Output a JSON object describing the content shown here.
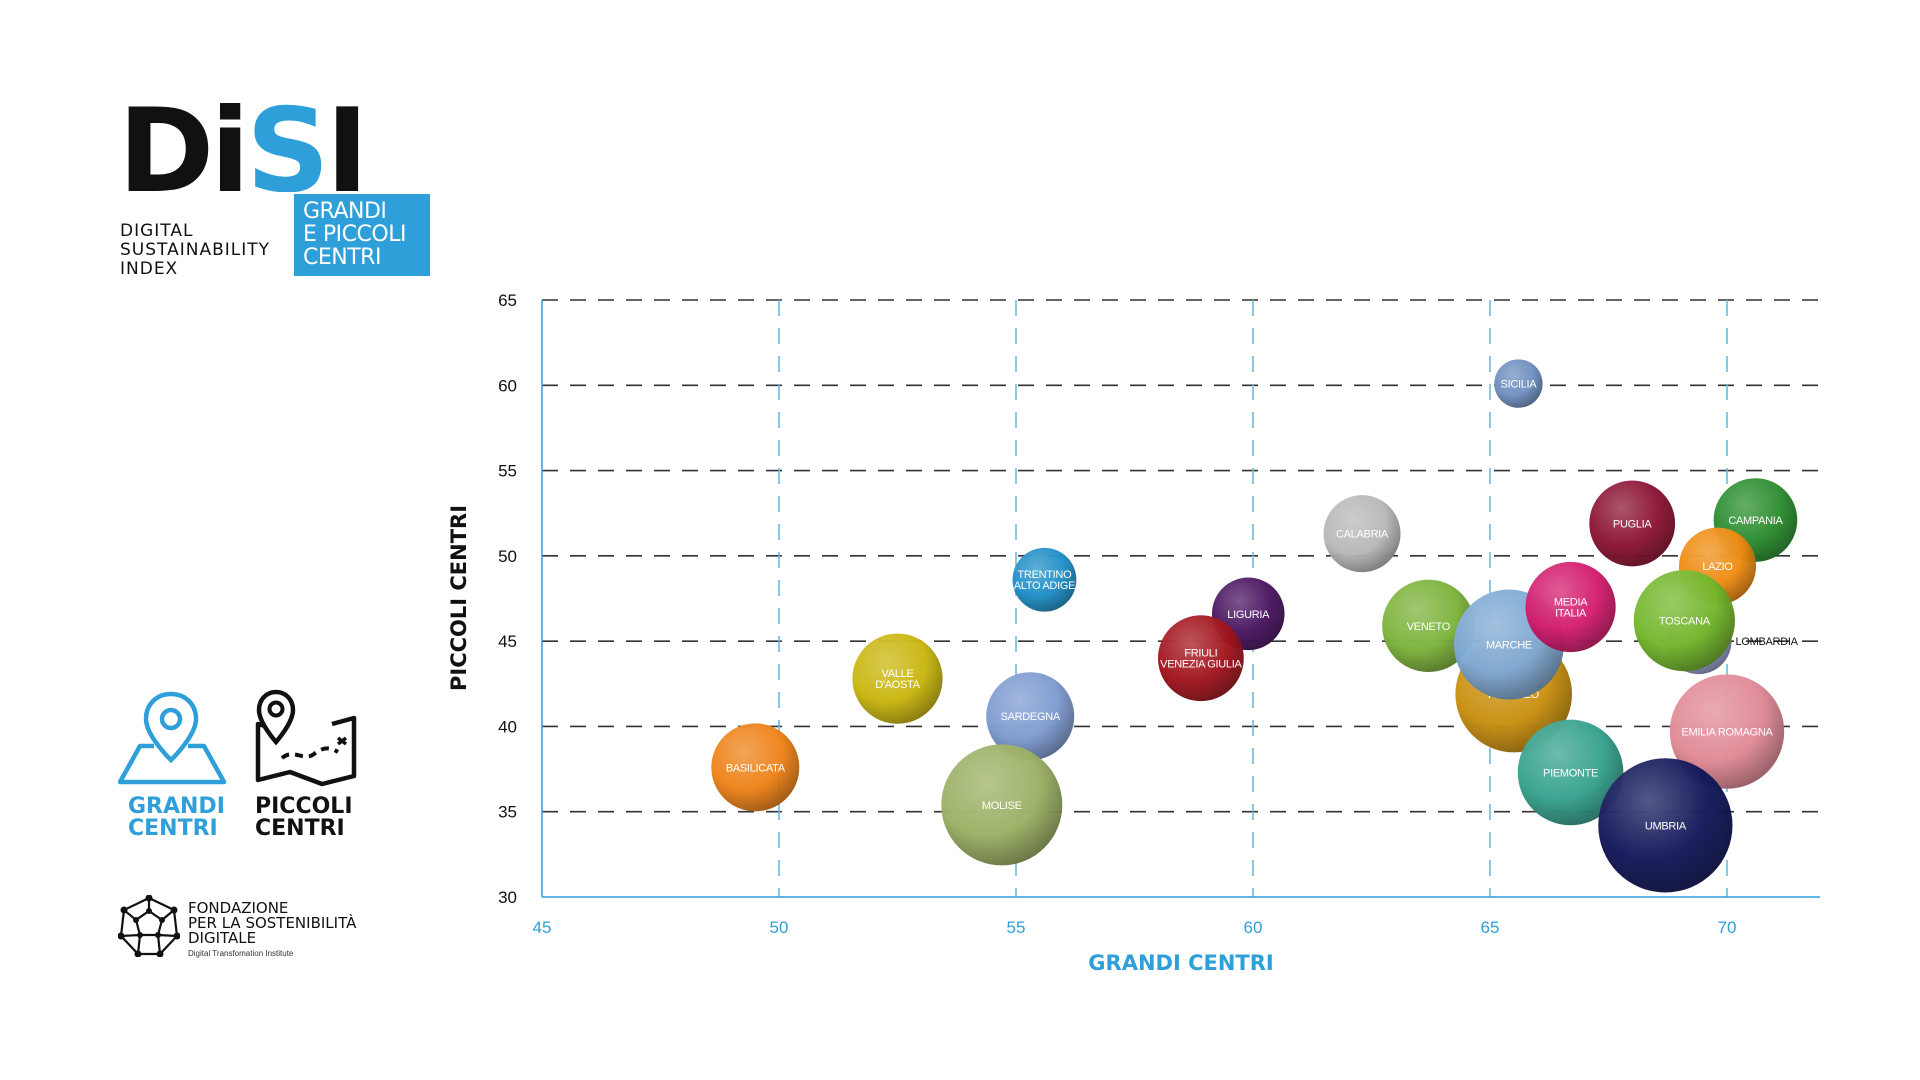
{
  "brand": {
    "logo_word_black": "Di",
    "logo_word_blue": "S",
    "logo_word_black2": "I",
    "subtitle_lines": [
      "DIGITAL",
      "SUSTAINABILITY",
      "INDEX"
    ],
    "badge_lines": [
      "GRANDI",
      "E PICCOLI",
      "CENTRI"
    ]
  },
  "legend": {
    "grandi": {
      "line1": "GRANDI",
      "line2": "CENTRI",
      "icon": "map-pin-icon"
    },
    "piccoli": {
      "line1": "PICCOLI",
      "line2": "CENTRI",
      "icon": "folded-map-icon"
    }
  },
  "foundation": {
    "lines": [
      "FONDAZIONE",
      "PER LA SOSTENIBILITÀ",
      "DIGITALE"
    ],
    "tagline": "Digital Transfomation Institute",
    "icon": "dodecahedron-logo-icon"
  },
  "colors": {
    "accent": "#2e9fd9",
    "grid_h": "#333333",
    "grid_v": "#6fb9de",
    "axis": "#2e9fd9",
    "text": "#111111"
  },
  "chart_data": {
    "type": "bubble",
    "title": "",
    "xlabel": "GRANDI CENTRI",
    "ylabel": "PICCOLI CENTRI",
    "xlim": [
      45,
      72
    ],
    "ylim": [
      30,
      65
    ],
    "xticks": [
      45,
      50,
      55,
      60,
      65,
      70
    ],
    "yticks": [
      30,
      35,
      40,
      45,
      50,
      55,
      60,
      65
    ],
    "points": [
      {
        "label": "SICILIA",
        "x": 65.6,
        "y": 60.1,
        "size": 2.2,
        "color": "#6f8fbf"
      },
      {
        "label": "CALABRIA",
        "x": 62.3,
        "y": 51.3,
        "size": 3.5,
        "color": "#b8b8b8"
      },
      {
        "label": "TRENTINO\nALTO ADIGE",
        "x": 55.6,
        "y": 48.6,
        "size": 2.9,
        "color": "#1f8fc7"
      },
      {
        "label": "LIGURIA",
        "x": 59.9,
        "y": 46.6,
        "size": 3.3,
        "color": "#4a1560"
      },
      {
        "label": "FRIULI\nVENEZIA GIULIA",
        "x": 58.9,
        "y": 44.0,
        "size": 3.9,
        "color": "#a3151e"
      },
      {
        "label": "VALLE\nD'AOSTA",
        "x": 52.5,
        "y": 42.8,
        "size": 4.1,
        "color": "#c9b60f"
      },
      {
        "label": "SARDEGNA",
        "x": 55.3,
        "y": 40.6,
        "size": 4.0,
        "color": "#7e9bd0"
      },
      {
        "label": "BASILICATA",
        "x": 49.5,
        "y": 37.6,
        "size": 4.0,
        "color": "#ee8218"
      },
      {
        "label": "MOLISE",
        "x": 54.7,
        "y": 35.4,
        "size": 5.5,
        "color": "#9bb064"
      },
      {
        "label": "VENETO",
        "x": 63.7,
        "y": 45.9,
        "size": 4.2,
        "color": "#7cb33b"
      },
      {
        "label": "ABRUZZO",
        "x": 65.5,
        "y": 41.9,
        "size": 5.3,
        "color": "#c99010"
      },
      {
        "label": "MARCHE",
        "x": 65.4,
        "y": 44.8,
        "size": 5.0,
        "color": "#7fa9d4"
      },
      {
        "label": "MEDIA\nITALIA",
        "x": 66.7,
        "y": 47.0,
        "size": 4.1,
        "color": "#d31d6e"
      },
      {
        "label": "PUGLIA",
        "x": 68.0,
        "y": 51.9,
        "size": 3.9,
        "color": "#8c1433"
      },
      {
        "label": "CAMPANIA",
        "x": 70.6,
        "y": 52.1,
        "size": 3.8,
        "color": "#2b8d2f"
      },
      {
        "label": "LAZIO",
        "x": 69.8,
        "y": 49.4,
        "size": 3.5,
        "color": "#ef8c12"
      },
      {
        "label": "LOMBARDIA",
        "x": 69.4,
        "y": 45.0,
        "size": 3.0,
        "color": "#8f99c4"
      },
      {
        "label": "TOSCANA",
        "x": 69.1,
        "y": 46.2,
        "size": 4.6,
        "color": "#74b72c"
      },
      {
        "label": "EMILIA ROMAGNA",
        "x": 70.0,
        "y": 39.7,
        "size": 5.2,
        "color": "#e08a96"
      },
      {
        "label": "PIEMONTE",
        "x": 66.7,
        "y": 37.3,
        "size": 4.8,
        "color": "#36a28d"
      },
      {
        "label": "UMBRIA",
        "x": 68.7,
        "y": 34.2,
        "size": 6.1,
        "color": "#13185a"
      }
    ]
  }
}
